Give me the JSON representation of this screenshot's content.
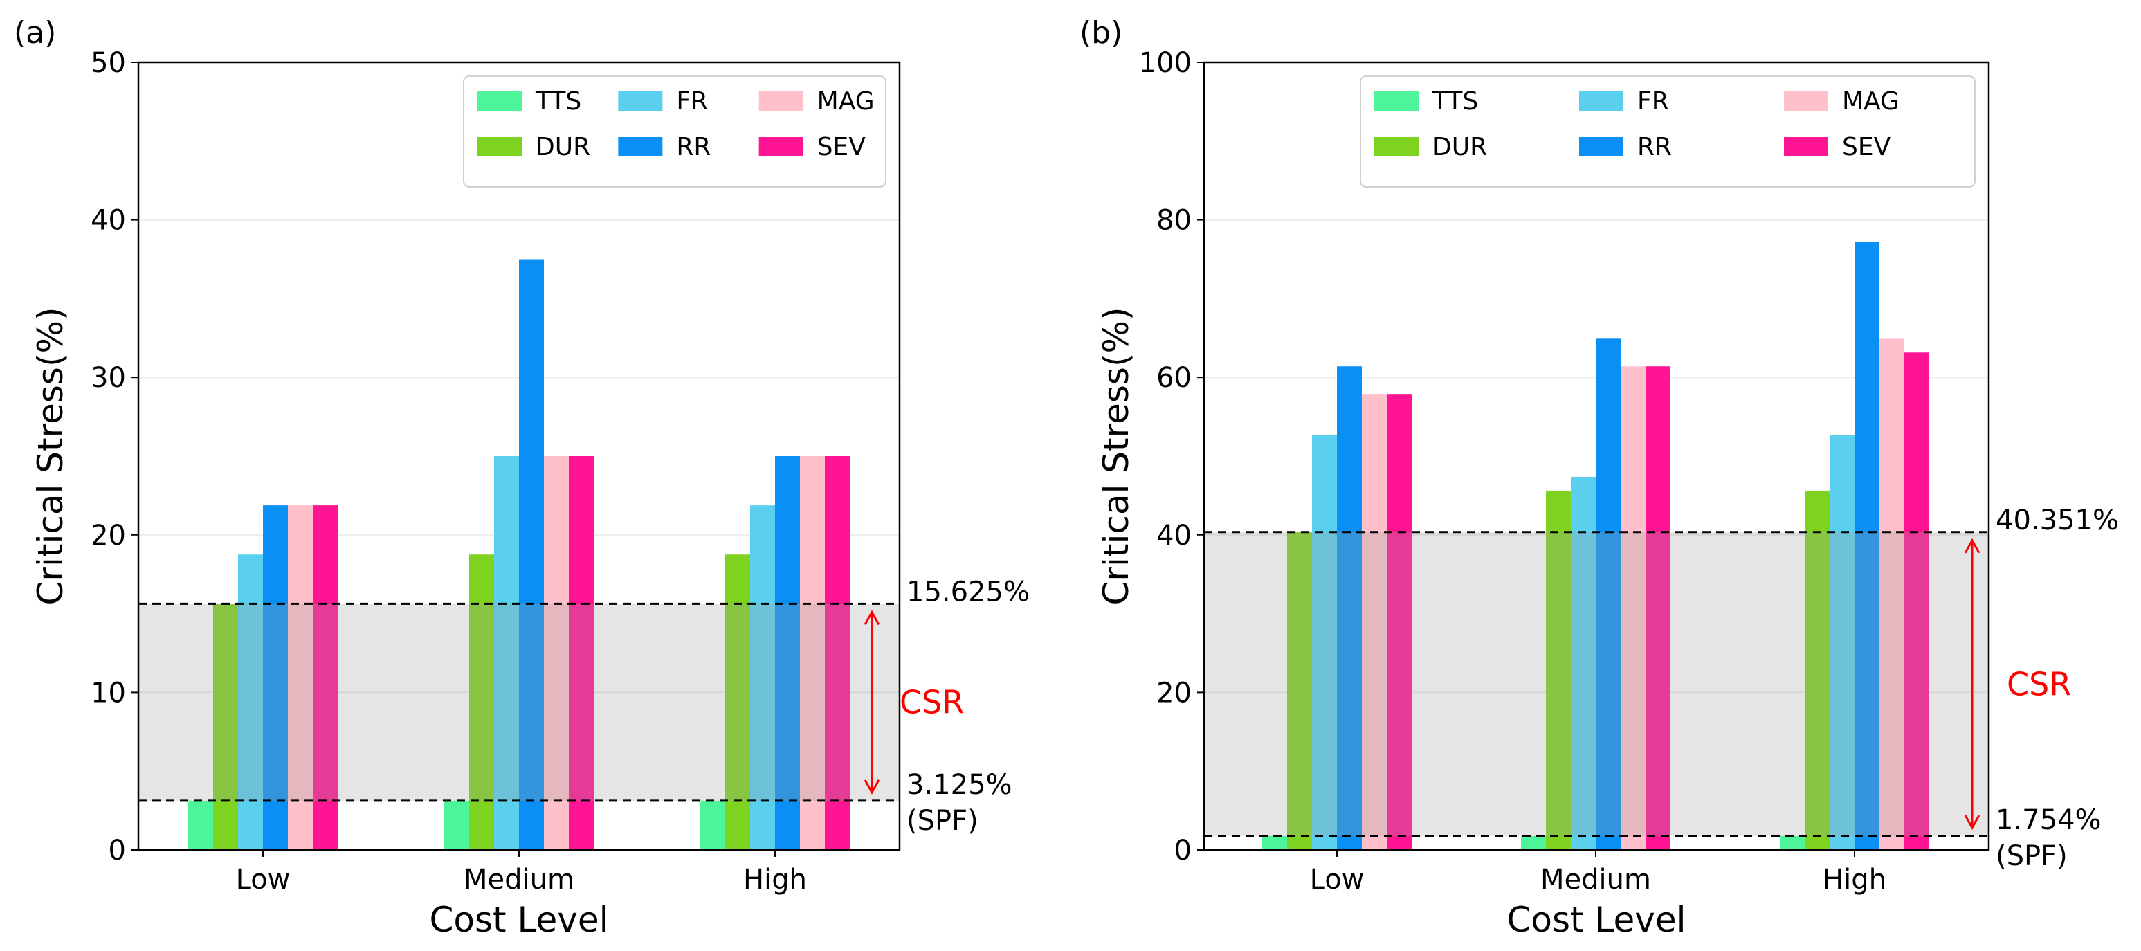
{
  "colors": {
    "TTS": "#4cf59a",
    "DUR": "#7ed321",
    "FR": "#5bcfee",
    "RR": "#0a8ff5",
    "MAG": "#ffc0cb",
    "SEV": "#ff1493",
    "csr": "#ff0000"
  },
  "chart_data": [
    {
      "panel_label": "(a)",
      "type": "bar",
      "xlabel": "Cost Level",
      "ylabel": "Critical Stress(%)",
      "ylim": [
        0,
        50
      ],
      "yticks": [
        0,
        10,
        20,
        30,
        40,
        50
      ],
      "grid": true,
      "legend_position": "top-right",
      "categories": [
        "Low",
        "Medium",
        "High"
      ],
      "series": [
        {
          "name": "TTS",
          "values": [
            3.125,
            3.125,
            3.125
          ]
        },
        {
          "name": "DUR",
          "values": [
            15.625,
            18.75,
            18.75
          ]
        },
        {
          "name": "FR",
          "values": [
            18.75,
            25.0,
            21.875
          ]
        },
        {
          "name": "RR",
          "values": [
            21.875,
            37.5,
            25.0
          ]
        },
        {
          "name": "MAG",
          "values": [
            21.875,
            25.0,
            25.0
          ]
        },
        {
          "name": "SEV",
          "values": [
            21.875,
            25.0,
            25.0
          ]
        }
      ],
      "upper_line": {
        "value": 15.625,
        "label": "15.625%"
      },
      "lower_line": {
        "value": 3.125,
        "label": "3.125%",
        "sublabel": "(SPF)"
      },
      "band_label": "CSR"
    },
    {
      "panel_label": "(b)",
      "type": "bar",
      "xlabel": "Cost Level",
      "ylabel": "Critical Stress(%)",
      "ylim": [
        0,
        100
      ],
      "yticks": [
        0,
        20,
        40,
        60,
        80,
        100
      ],
      "grid": true,
      "legend_position": "top-right",
      "categories": [
        "Low",
        "Medium",
        "High"
      ],
      "series": [
        {
          "name": "TTS",
          "values": [
            1.754,
            1.754,
            1.754
          ]
        },
        {
          "name": "DUR",
          "values": [
            40.351,
            45.614,
            45.614
          ]
        },
        {
          "name": "FR",
          "values": [
            52.632,
            47.368,
            52.632
          ]
        },
        {
          "name": "RR",
          "values": [
            61.404,
            64.912,
            77.193
          ]
        },
        {
          "name": "MAG",
          "values": [
            57.895,
            61.404,
            64.912
          ]
        },
        {
          "name": "SEV",
          "values": [
            57.895,
            61.404,
            63.158
          ]
        }
      ],
      "upper_line": {
        "value": 40.351,
        "label": "40.351%"
      },
      "lower_line": {
        "value": 1.754,
        "label": "1.754%",
        "sublabel": "(SPF)"
      },
      "band_label": "CSR"
    }
  ]
}
